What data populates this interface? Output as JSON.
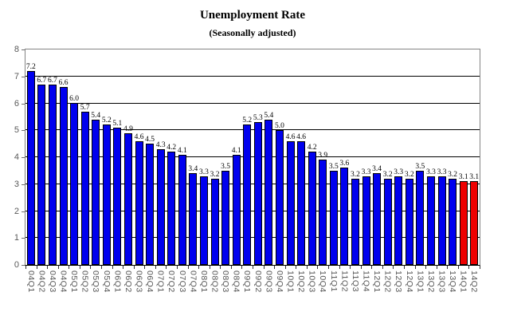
{
  "chart_data": {
    "type": "bar",
    "title": "Unemployment Rate",
    "subtitle": "(Seasonally adjusted)",
    "categories": [
      "04Q1",
      "04Q2",
      "04Q3",
      "04Q4",
      "05Q1",
      "05Q2",
      "05Q3",
      "05Q4",
      "06Q1",
      "06Q2",
      "06Q3",
      "06Q4",
      "07Q1",
      "07Q2",
      "07Q3",
      "07Q4",
      "08Q1",
      "08Q2",
      "08Q3",
      "08Q4",
      "09Q1",
      "09Q2",
      "09Q3",
      "09Q4",
      "10Q1",
      "10Q2",
      "10Q3",
      "10Q4",
      "11Q1",
      "11Q2",
      "11Q3",
      "11Q4",
      "12Q1",
      "12Q2",
      "12Q3",
      "12Q4",
      "13Q1",
      "13Q2",
      "13Q3",
      "13Q4",
      "14Q1",
      "14Q2"
    ],
    "values": [
      7.2,
      6.7,
      6.7,
      6.6,
      6.0,
      5.7,
      5.4,
      5.2,
      5.1,
      4.9,
      4.6,
      4.5,
      4.3,
      4.2,
      4.1,
      3.4,
      3.3,
      3.2,
      3.5,
      4.1,
      5.2,
      5.3,
      5.4,
      5.0,
      4.6,
      4.6,
      4.2,
      3.9,
      3.5,
      3.6,
      3.2,
      3.3,
      3.4,
      3.2,
      3.3,
      3.2,
      3.5,
      3.3,
      3.3,
      3.2,
      3.1,
      3.1
    ],
    "value_labels": [
      "7.2",
      "6.7",
      "6.7",
      "6.6",
      "6.0",
      "5.7",
      "5.4",
      "5.2",
      "5.1",
      "4.9",
      "4.6",
      "4.5",
      "4.3",
      "4.2",
      "4.1",
      "3.4",
      "3.3",
      "3.2",
      "3.5",
      "4.1",
      "5.2",
      "5.3",
      "5.4",
      "5.0",
      "4.6",
      "4.6",
      "4.2",
      "3.9",
      "3.5",
      "3.6",
      "3.2",
      "3.3",
      "3.4",
      "3.2",
      "3.3",
      "3.2",
      "3.5",
      "3.3",
      "3.3",
      "3.2",
      "3.1",
      "3.1"
    ],
    "highlight_indices": [
      40,
      41
    ],
    "ylim": [
      0,
      8
    ],
    "yticks": [
      0,
      1,
      2,
      3,
      4,
      5,
      6,
      7,
      8
    ],
    "grid": true,
    "legend_position": "none",
    "data_labels": true,
    "colors": {
      "bar_default": "#0000EE",
      "bar_highlight": "#EE0000",
      "gridline": "#000000",
      "plot_border": "#848484",
      "axis_line": "#000000",
      "axis_text": "#595959",
      "value_label_text": "#000000",
      "background": "#FFFFFF"
    }
  }
}
